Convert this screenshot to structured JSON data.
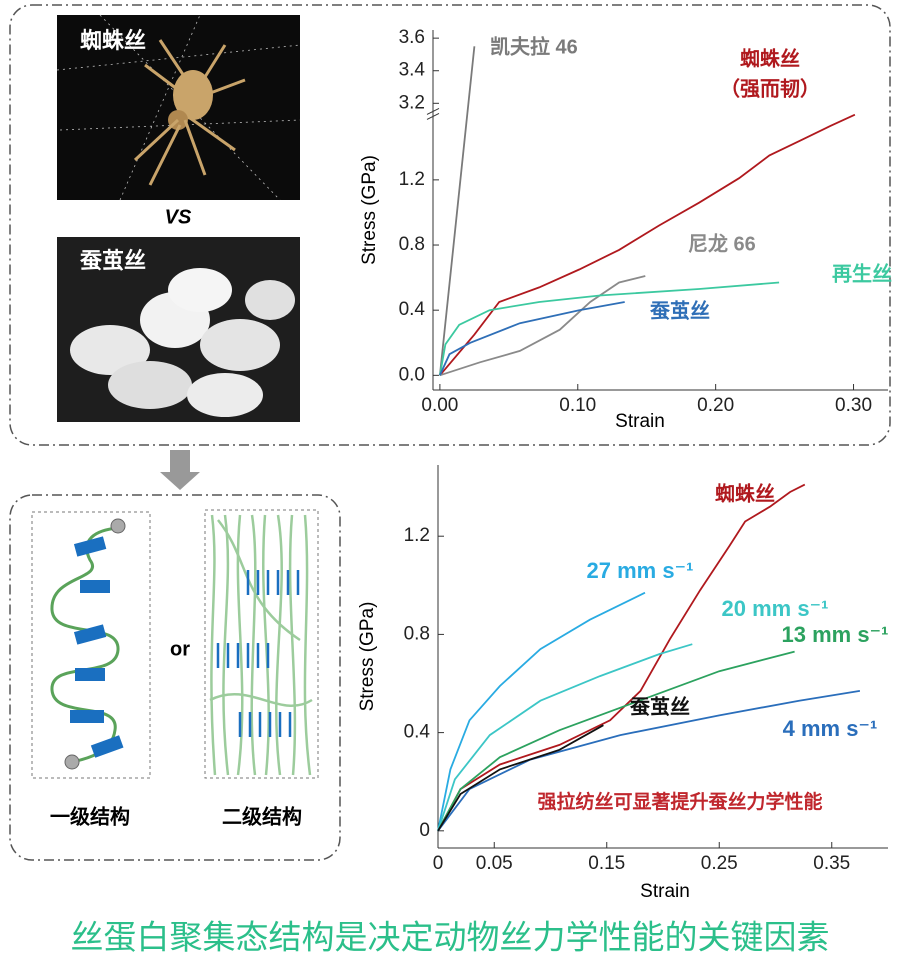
{
  "panels": {
    "photo_top_label": "蜘蛛丝",
    "versus": "VS",
    "photo_bottom_label": "蚕茧丝",
    "or": "or",
    "primary_label": "一级结构",
    "secondary_label": "二级结构"
  },
  "chart_data": [
    {
      "type": "line",
      "xlabel": "Strain",
      "ylabel": "Stress (GPa)",
      "xlim": [
        -0.005,
        0.325
      ],
      "ylim": [
        -0.09,
        3.65
      ],
      "y_break": [
        1.62,
        3.15
      ],
      "xticks": [
        {
          "value": 0,
          "label": "0.00"
        },
        {
          "value": 0.1,
          "label": "0.10"
        },
        {
          "value": 0.2,
          "label": "0.20"
        },
        {
          "value": 0.3,
          "label": "0.30"
        }
      ],
      "yticks": [
        {
          "value": 0,
          "label": "0.0"
        },
        0.4,
        0.8,
        1.2,
        3.2,
        3.4,
        3.6
      ],
      "series": [
        {
          "name": "凯夫拉 46",
          "color": "#7a7a7a",
          "x": [
            0,
            0.025
          ],
          "values": [
            0,
            3.55
          ]
        },
        {
          "name": "蜘蛛丝",
          "note": "（强而韧）",
          "color": "#b0191e",
          "x": [
            0,
            0.025,
            0.043,
            0.072,
            0.101,
            0.13,
            0.159,
            0.188,
            0.217,
            0.239,
            0.261,
            0.283,
            0.301
          ],
          "values": [
            0,
            0.25,
            0.45,
            0.54,
            0.65,
            0.77,
            0.92,
            1.06,
            1.21,
            1.35,
            1.44,
            1.53,
            1.6
          ]
        },
        {
          "name": "尼龙 66",
          "color": "#8a8a8a",
          "x": [
            0,
            0.029,
            0.058,
            0.087,
            0.109,
            0.13,
            0.149
          ],
          "values": [
            0,
            0.08,
            0.15,
            0.28,
            0.45,
            0.57,
            0.61
          ]
        },
        {
          "name": "再生丝",
          "color": "#3cc9a0",
          "x": [
            0,
            0.004,
            0.014,
            0.036,
            0.072,
            0.116,
            0.188,
            0.246
          ],
          "values": [
            0,
            0.19,
            0.31,
            0.4,
            0.45,
            0.49,
            0.53,
            0.57
          ]
        },
        {
          "name": "蚕茧丝",
          "color": "#2f6fb7",
          "x": [
            0,
            0.007,
            0.022,
            0.058,
            0.101,
            0.134
          ],
          "values": [
            0,
            0.13,
            0.2,
            0.32,
            0.4,
            0.45
          ]
        }
      ]
    },
    {
      "type": "line",
      "xlabel": "Strain",
      "ylabel": "Stress (GPa)",
      "annotation": "强拉纺丝可显著提升蚕丝力学性能",
      "xlim": [
        0,
        0.4
      ],
      "ylim": [
        -0.07,
        1.49
      ],
      "xticks": [
        0,
        0.05,
        0.15,
        0.25,
        0.35
      ],
      "yticks": [
        0,
        0.4,
        0.8,
        1.2
      ],
      "series": [
        {
          "name": "蜘蛛丝",
          "color": "#b0191e",
          "x": [
            0,
            0.02,
            0.055,
            0.108,
            0.153,
            0.18,
            0.206,
            0.233,
            0.259,
            0.273,
            0.295,
            0.313,
            0.326
          ],
          "values": [
            0,
            0.17,
            0.27,
            0.35,
            0.45,
            0.57,
            0.78,
            0.98,
            1.16,
            1.26,
            1.32,
            1.38,
            1.41
          ]
        },
        {
          "name": "27 mm s⁻¹",
          "color": "#29abe2",
          "x": [
            0,
            0.011,
            0.028,
            0.055,
            0.091,
            0.135,
            0.184
          ],
          "values": [
            0,
            0.25,
            0.45,
            0.59,
            0.74,
            0.86,
            0.97
          ]
        },
        {
          "name": "20 mm s⁻¹",
          "color": "#3cc6c6",
          "x": [
            0,
            0.015,
            0.046,
            0.091,
            0.144,
            0.197,
            0.226
          ],
          "values": [
            0,
            0.21,
            0.39,
            0.53,
            0.63,
            0.72,
            0.76
          ]
        },
        {
          "name": "13 mm s⁻¹",
          "color": "#2ca25f",
          "x": [
            0,
            0.02,
            0.055,
            0.108,
            0.179,
            0.25,
            0.317
          ],
          "values": [
            0,
            0.17,
            0.3,
            0.41,
            0.53,
            0.65,
            0.73
          ]
        },
        {
          "name": "4 mm s⁻¹",
          "color": "#2a6ebb",
          "x": [
            0,
            0.028,
            0.082,
            0.162,
            0.25,
            0.321,
            0.375
          ],
          "values": [
            0,
            0.17,
            0.29,
            0.39,
            0.47,
            0.53,
            0.57
          ]
        },
        {
          "name": "蚕茧丝",
          "color": "#111111",
          "x": [
            0,
            0.02,
            0.055,
            0.108,
            0.147
          ],
          "values": [
            0,
            0.15,
            0.25,
            0.33,
            0.43
          ]
        }
      ]
    }
  ],
  "footer": {
    "title": "丝蛋白聚集态结构是决定动物丝力学性能的关键因素"
  }
}
